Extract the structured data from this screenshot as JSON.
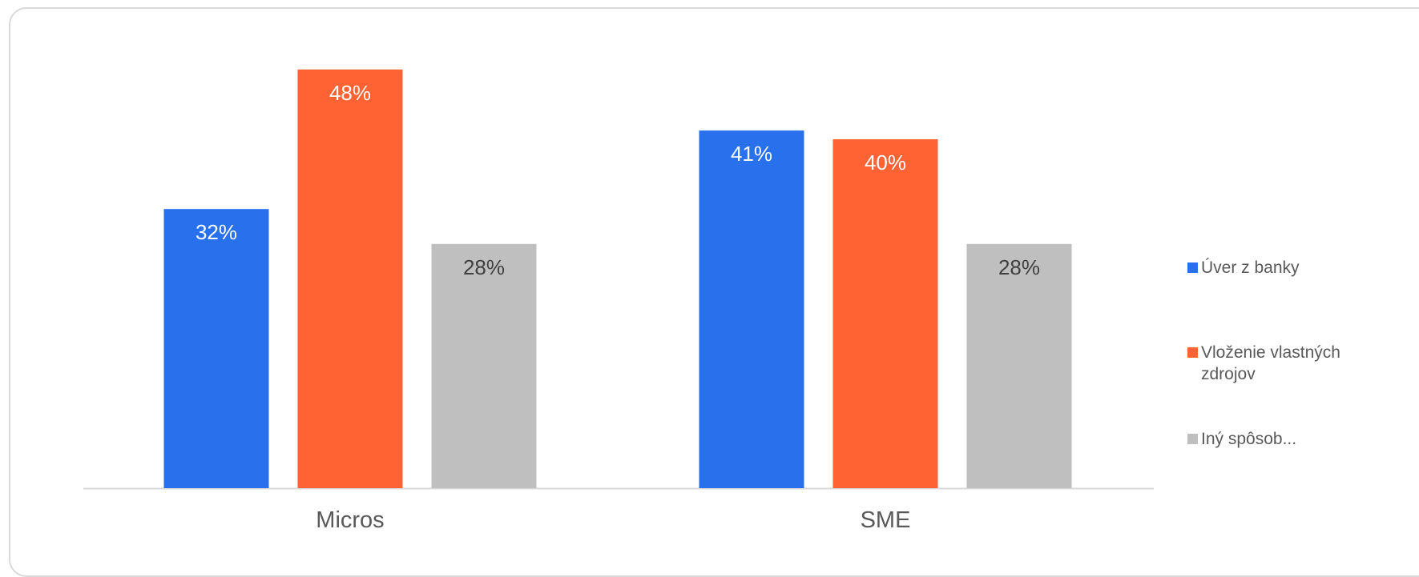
{
  "chart_data": {
    "type": "bar",
    "categories": [
      "Micros",
      "SME"
    ],
    "series": [
      {
        "name": "Úver z banky",
        "values": [
          32,
          41
        ],
        "labels": [
          "32%",
          "41%"
        ],
        "color": "#2970ED",
        "label_color": "#ffffff"
      },
      {
        "name": "Vloženie vlastných zdrojov",
        "values": [
          48,
          40
        ],
        "labels": [
          "48%",
          "40%"
        ],
        "color": "#FF6333",
        "label_color": "#ffffff"
      },
      {
        "name": "Iný spôsob...",
        "values": [
          28,
          28
        ],
        "labels": [
          "28%",
          "28%"
        ],
        "color": "#BFBFBF",
        "label_color": "#404040"
      }
    ],
    "ylim": [
      0,
      50
    ],
    "value_unit": "%",
    "grid": false,
    "legend_position": "right",
    "axis_line_color": "#d9d9d9"
  }
}
